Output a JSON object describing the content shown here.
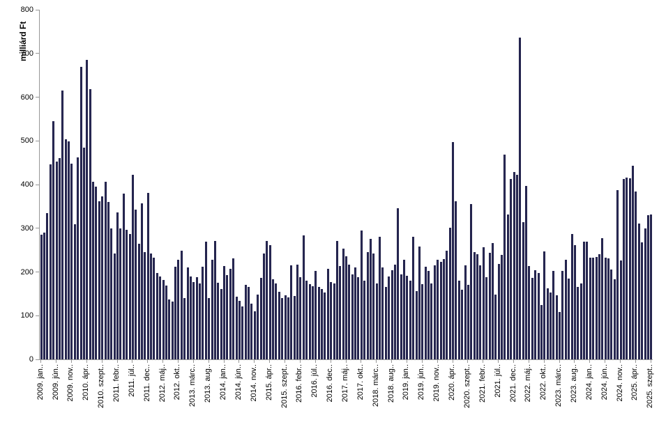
{
  "chart_data": {
    "type": "bar",
    "title": "",
    "ylabel": "milliárd Ft",
    "xlabel": "",
    "ylim": [
      0,
      800
    ],
    "y_ticks": [
      0,
      100,
      200,
      300,
      400,
      500,
      600,
      700,
      800
    ],
    "grid": false,
    "legend": false,
    "bar_color": "#32325e",
    "bar_border_color": "#191942",
    "axis_color": "#969696",
    "x_start": "2009. jan.",
    "x_end": "2025. szept.",
    "x_label_every": 5,
    "x_tick_labels": [
      "2009. jan..",
      "2009. jún..",
      "2009. nov..",
      "2010. ápr..",
      "2010. szept..",
      "2011. febr..",
      "2011. júl..",
      "2011. dec..",
      "2012. máj..",
      "2012. okt..",
      "2013. márc..",
      "2013. aug..",
      "2014. jan..",
      "2014. jún..",
      "2014. nov..",
      "2015. ápr..",
      "2015. szept..",
      "2016. febr..",
      "2016. júl..",
      "2016. dec..",
      "2017. máj..",
      "2017. okt..",
      "2018. márc..",
      "2018. aug..",
      "2019. jan..",
      "2019. jún..",
      "2019. nov..",
      "2020. ápr..",
      "2020. szept..",
      "2021. febr..",
      "2021. júl..",
      "2021. dec..",
      "2022. máj..",
      "2022. okt..",
      "2023. márc..",
      "2023. aug..",
      "2024. jan..",
      "2024. jún..",
      "2024. nov..",
      "2025. ápr..",
      "2025. szept.."
    ],
    "values": [
      285,
      290,
      335,
      447,
      545,
      453,
      461,
      615,
      503,
      499,
      448,
      309,
      462,
      670,
      485,
      686,
      618,
      407,
      396,
      362,
      373,
      406,
      360,
      300,
      242,
      336,
      300,
      380,
      296,
      287,
      422,
      342,
      265,
      357,
      246,
      381,
      243,
      233,
      198,
      190,
      182,
      169,
      137,
      132,
      212,
      228,
      249,
      140,
      210,
      190,
      177,
      188,
      174,
      212,
      270,
      140,
      228,
      271,
      175,
      161,
      214,
      193,
      207,
      231,
      143,
      134,
      121,
      170,
      166,
      127,
      110,
      148,
      186,
      242,
      271,
      262,
      183,
      174,
      154,
      141,
      146,
      142,
      215,
      145,
      217,
      188,
      284,
      180,
      172,
      167,
      202,
      166,
      161,
      153,
      207,
      177,
      174,
      271,
      214,
      254,
      236,
      217,
      194,
      210,
      188,
      295,
      180,
      246,
      275,
      243,
      174,
      280,
      210,
      166,
      190,
      204,
      217,
      346,
      194,
      228,
      191,
      180,
      280,
      156,
      258,
      172,
      212,
      202,
      174,
      215,
      228,
      223,
      230,
      249,
      301,
      497,
      362,
      180,
      159,
      215,
      170,
      355,
      246,
      241,
      215,
      257,
      188,
      244,
      266,
      148,
      218,
      239,
      468,
      331,
      413,
      428,
      422,
      736,
      314,
      397,
      214,
      186,
      204,
      198,
      124,
      247,
      163,
      153,
      202,
      146,
      108,
      202,
      228,
      185,
      287,
      262,
      166,
      174,
      270,
      270,
      232,
      232,
      235,
      240,
      277,
      232,
      231,
      206,
      183,
      387,
      227,
      413,
      416,
      414,
      443,
      384,
      311,
      268,
      299,
      330,
      332
    ]
  }
}
